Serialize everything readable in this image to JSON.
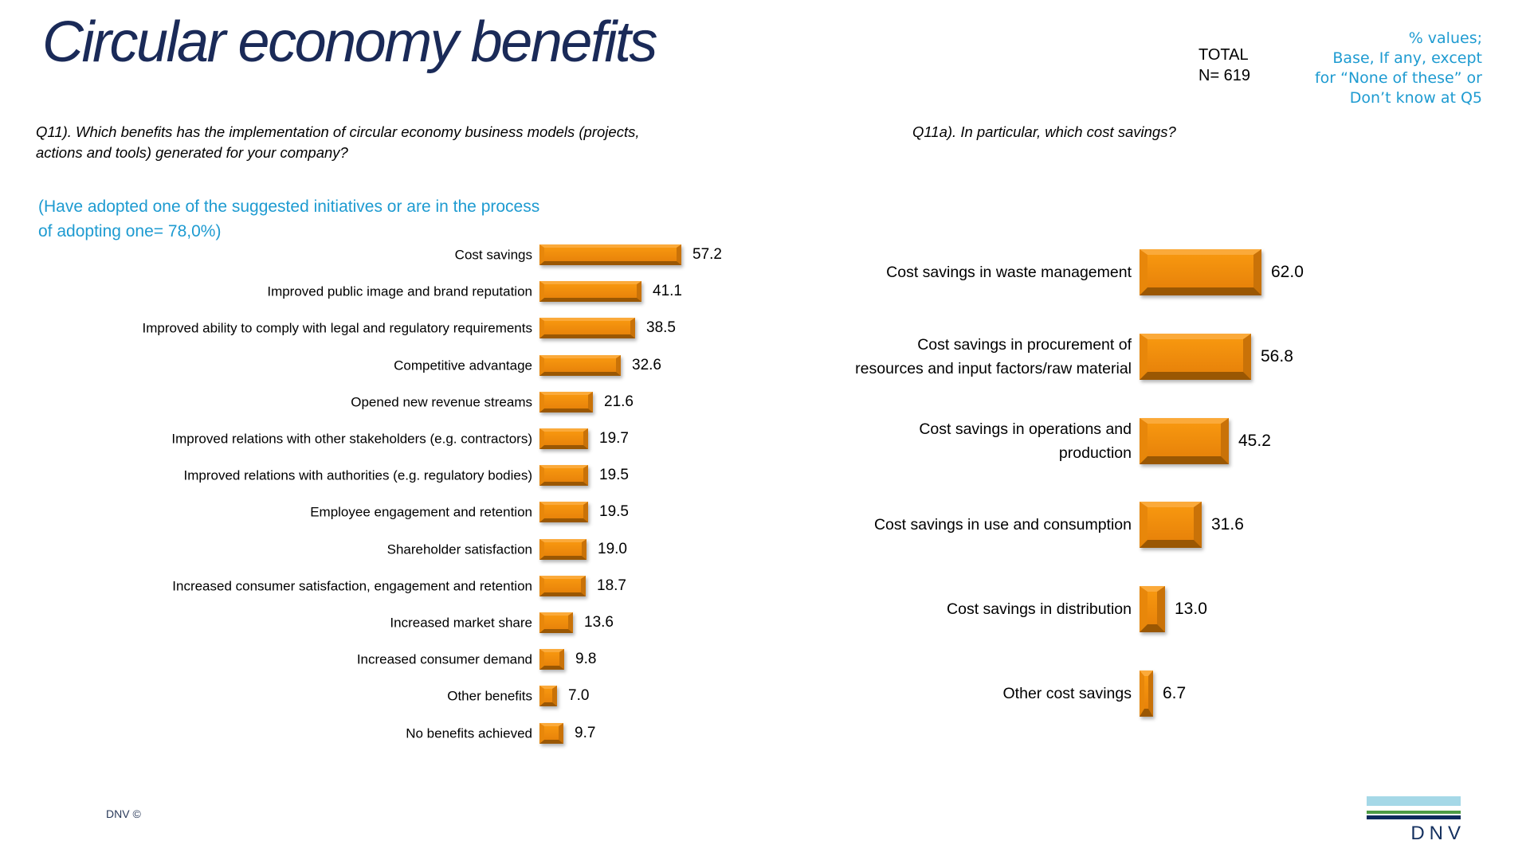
{
  "slide": {
    "title": "Circular economy benefits",
    "total": {
      "label": "TOTAL",
      "n": "N= 619"
    },
    "base_note": {
      "lines": [
        "% values;",
        "Base, If any, except",
        "for “None of these” or",
        "Don’t know at Q5"
      ],
      "color": "#1E9BD1"
    },
    "footer_copyright": "DNV ©",
    "logo": {
      "text": "DNV",
      "bar_colors": [
        "#A5D8E7",
        "#4D9B44",
        "#0E2A5C"
      ]
    }
  },
  "left_panel": {
    "question_line1": "Q11). Which benefits has the implementation of circular economy business models (projects,",
    "question_line2": "actions and tools) generated for your company?",
    "adoption_note_line1": "(Have adopted one of the suggested initiatives or are in the process",
    "adoption_note_line2": "of adopting one= 78,0%)"
  },
  "right_panel": {
    "question": "Q11a). In particular, which cost savings?"
  },
  "chart_data": [
    {
      "type": "bar",
      "orientation": "horizontal",
      "title": "Q11). Which benefits has the implementation of circular economy business models (projects, actions and tools) generated for your company?",
      "categories": [
        "Cost savings",
        "Improved public image and brand reputation",
        "Improved ability to comply with legal and regulatory requirements",
        "Competitive advantage",
        "Opened new revenue streams",
        "Improved relations with other stakeholders (e.g. contractors)",
        "Improved relations with authorities (e.g. regulatory bodies)",
        "Employee engagement and retention",
        "Shareholder satisfaction",
        "Increased consumer satisfaction, engagement and retention",
        "Increased market share",
        "Increased consumer demand",
        "Other benefits",
        "No benefits achieved"
      ],
      "values": [
        57.2,
        41.1,
        38.5,
        32.6,
        21.6,
        19.7,
        19.5,
        19.5,
        19.0,
        18.7,
        13.6,
        9.8,
        7.0,
        9.7
      ],
      "xlabel": "",
      "ylabel": "",
      "xlim": [
        0,
        100
      ],
      "unit": "%",
      "data_labels": "one_decimal",
      "bar_color": "#F08A0D",
      "grid": false,
      "legend": "none"
    },
    {
      "type": "bar",
      "orientation": "horizontal",
      "title": "Q11a). In particular, which cost savings?",
      "categories": [
        "Cost savings in waste management",
        "Cost savings in procurement of\nresources and input factors/raw material",
        "Cost savings in operations and\nproduction",
        "Cost savings in use and consumption",
        "Cost savings in distribution",
        "Other cost savings"
      ],
      "values": [
        62.0,
        56.8,
        45.2,
        31.6,
        13.0,
        6.7
      ],
      "xlabel": "",
      "ylabel": "",
      "xlim": [
        0,
        100
      ],
      "unit": "%",
      "data_labels": "one_decimal",
      "bar_color": "#F08A0D",
      "grid": false,
      "legend": "none"
    }
  ]
}
